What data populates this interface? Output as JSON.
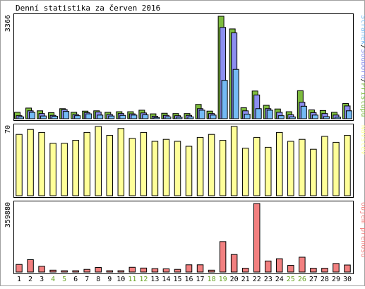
{
  "chart_data": {
    "type": "bar",
    "title": "Denní statistika za červen 2016",
    "categories": [
      "1",
      "2",
      "3",
      "4",
      "5",
      "6",
      "7",
      "8",
      "9",
      "10",
      "11",
      "12",
      "13",
      "14",
      "15",
      "16",
      "17",
      "18",
      "19",
      "20",
      "21",
      "22",
      "23",
      "24",
      "25",
      "26",
      "27",
      "28",
      "29",
      "30"
    ],
    "weekend_days": [
      "4",
      "5",
      "11",
      "12",
      "18",
      "19",
      "25",
      "26"
    ],
    "colors": {
      "background": "#ffffff",
      "frame": "#000000",
      "weekday_label": "#000000",
      "weekend_label": "#66a322",
      "hits": "#7dbb3e",
      "files": "#8c8ef0",
      "pages": "#74baf5",
      "visits": "#ffff99",
      "kbytes": "#f28080"
    },
    "panels": [
      {
        "id": "traffic",
        "ymax_label": "3366",
        "ymax": 3366,
        "legend": [
          {
            "text": "Stránek",
            "color": "#74baf5"
          },
          {
            "text": "/",
            "color": "#000000"
          },
          {
            "text": "Souborů",
            "color": "#8c8ef0"
          },
          {
            "text": "/",
            "color": "#000000"
          },
          {
            "text": "Přístupů",
            "color": "#7dbb3e"
          }
        ],
        "series": [
          {
            "name": "Přístupů",
            "color": "#7dbb3e",
            "values": [
              210,
              350,
              260,
              200,
              330,
              210,
              250,
              260,
              210,
              230,
              230,
              280,
              160,
              180,
              170,
              170,
              470,
              250,
              3366,
              2950,
              360,
              910,
              440,
              320,
              230,
              920,
              290,
              270,
              210,
              500
            ]
          },
          {
            "name": "Souborů",
            "color": "#8c8ef0",
            "values": [
              100,
              260,
              170,
              110,
              300,
              140,
              200,
              220,
              140,
              170,
              160,
              190,
              80,
              110,
              100,
              110,
              330,
              170,
              3000,
              2820,
              260,
              780,
              330,
              210,
              130,
              540,
              200,
              170,
              120,
              420
            ]
          },
          {
            "name": "Stránek",
            "color": "#74baf5",
            "values": [
              60,
              210,
              90,
              80,
              240,
              100,
              160,
              120,
              90,
              110,
              120,
              130,
              40,
              60,
              50,
              60,
              280,
              120,
              1260,
              1620,
              150,
              330,
              280,
              100,
              60,
              410,
              120,
              70,
              50,
              260
            ]
          }
        ]
      },
      {
        "id": "visits",
        "ymax_label": "70",
        "ymax": 70,
        "legend": [
          {
            "text": "Návštěv",
            "color": "#ffff99"
          }
        ],
        "series": [
          {
            "name": "Návštěv",
            "color": "#ffff99",
            "values": [
              62,
              67,
              64,
              53,
              53,
              56,
              64,
              70,
              61,
              68,
              58,
              64,
              55,
              57,
              55,
              50,
              59,
              62,
              56,
              70,
              48,
              59,
              49,
              64,
              55,
              57,
              47,
              60,
              54,
              61
            ]
          }
        ]
      },
      {
        "id": "volume",
        "ymax_label": "359880",
        "ymax": 359880,
        "legend": [
          {
            "text": "Objem přenosu",
            "color": "#f28080"
          }
        ],
        "series": [
          {
            "name": "Objem přenosu",
            "color": "#f28080",
            "values": [
              40000,
              65000,
              30000,
              10000,
              7000,
              7000,
              14000,
              24000,
              7000,
              7000,
              25000,
              21000,
              18000,
              17000,
              14000,
              38000,
              38000,
              10000,
              160000,
              92000,
              20000,
              359880,
              58000,
              70000,
              35000,
              78000,
              20000,
              20000,
              45000,
              37000
            ]
          }
        ]
      }
    ]
  }
}
